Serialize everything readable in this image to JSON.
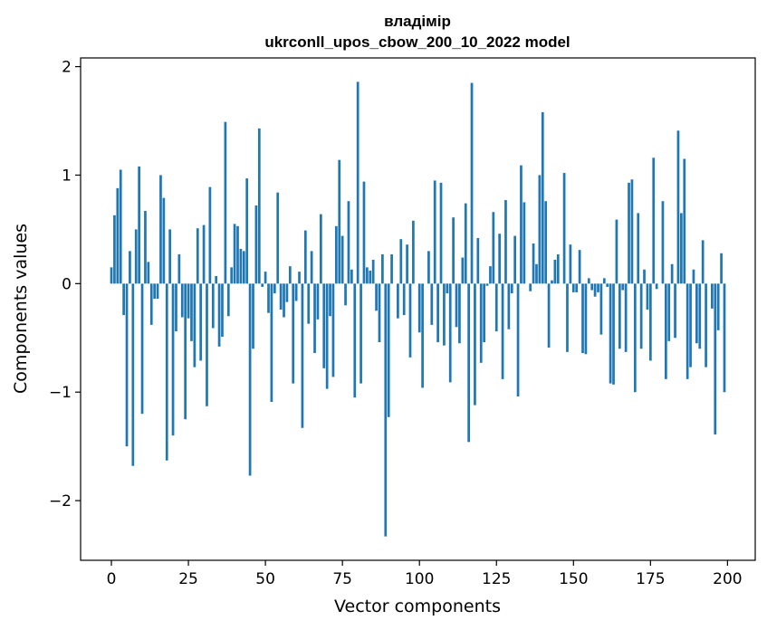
{
  "chart_data": {
    "type": "bar",
    "title_line1": "владімір",
    "title_line2": "ukrconll_upos_cbow_200_10_2022 model",
    "xlabel": "Vector components",
    "ylabel": "Components values",
    "xlim": [
      -10,
      209
    ],
    "ylim": [
      -2.55,
      2.08
    ],
    "xticks": [
      0,
      25,
      50,
      75,
      100,
      125,
      150,
      175,
      200
    ],
    "xtick_labels": [
      "0",
      "25",
      "50",
      "75",
      "100",
      "125",
      "150",
      "175",
      "200"
    ],
    "yticks": [
      -2,
      -1,
      0,
      1,
      2
    ],
    "ytick_labels": [
      "−2",
      "−1",
      "0",
      "1",
      "2"
    ],
    "grid": false,
    "bar_color": "#1f77b4",
    "values": [
      0.15,
      0.63,
      0.88,
      1.05,
      -0.29,
      -1.5,
      0.3,
      -1.68,
      0.5,
      1.08,
      -1.2,
      0.67,
      0.2,
      -0.38,
      -0.14,
      -0.14,
      1.0,
      0.79,
      -1.63,
      0.5,
      -1.4,
      -0.44,
      0.27,
      -0.31,
      -1.25,
      -0.32,
      -0.53,
      -0.77,
      0.51,
      -0.71,
      0.54,
      -1.13,
      0.89,
      -0.41,
      0.07,
      -0.58,
      -0.49,
      1.49,
      -0.3,
      0.15,
      0.55,
      0.53,
      0.32,
      0.3,
      0.97,
      -1.77,
      -0.6,
      0.72,
      1.43,
      -0.03,
      0.11,
      -0.27,
      -1.09,
      -0.09,
      0.84,
      -0.24,
      -0.31,
      -0.17,
      0.16,
      -0.92,
      -0.16,
      0.11,
      -1.33,
      0.49,
      -0.37,
      0.3,
      -0.64,
      -0.33,
      0.64,
      -0.78,
      -0.97,
      -0.3,
      -0.86,
      0.53,
      1.14,
      0.44,
      -0.2,
      0.76,
      0.13,
      -1.05,
      1.86,
      -0.92,
      0.94,
      0.15,
      0.12,
      0.22,
      -0.25,
      -0.54,
      0.27,
      -2.33,
      -1.23,
      0.27,
      0.0,
      -0.32,
      0.41,
      -0.29,
      0.36,
      -0.68,
      0.58,
      0.0,
      -0.45,
      -0.96,
      0.0,
      0.3,
      -0.38,
      0.95,
      -0.54,
      0.93,
      -0.57,
      -0.09,
      -0.91,
      0.61,
      -0.4,
      -0.55,
      0.24,
      0.74,
      -1.46,
      1.85,
      -1.12,
      0.42,
      -0.73,
      -0.54,
      -0.02,
      0.16,
      0.66,
      -0.44,
      0.46,
      -0.88,
      0.77,
      -0.42,
      -0.09,
      0.44,
      -1.04,
      1.09,
      0.75,
      0.0,
      -0.07,
      0.37,
      0.18,
      1.0,
      1.58,
      0.76,
      -0.59,
      0.03,
      0.22,
      0.27,
      0.0,
      1.02,
      -0.63,
      0.36,
      -0.08,
      -0.08,
      0.31,
      -0.64,
      -0.65,
      0.05,
      -0.06,
      -0.12,
      -0.08,
      -0.47,
      0.05,
      -0.03,
      -0.92,
      -0.93,
      0.59,
      -0.6,
      -0.06,
      -0.63,
      0.93,
      0.96,
      -1.0,
      0.65,
      -0.6,
      0.13,
      -0.24,
      -0.71,
      1.16,
      -0.05,
      0.0,
      0.76,
      -0.88,
      -0.53,
      0.18,
      -0.5,
      1.41,
      0.65,
      1.15,
      -0.88,
      -0.77,
      0.13,
      -0.55,
      -0.6,
      0.4,
      -0.77,
      0.0,
      -0.23,
      -1.39,
      -0.43,
      0.28,
      -1.0
    ]
  }
}
